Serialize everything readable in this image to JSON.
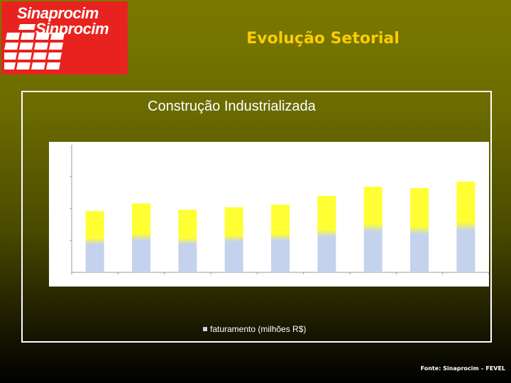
{
  "logo": {
    "line1": "Sinaprocim",
    "line2": "Sinprocim"
  },
  "slide": {
    "title": "Evolução Setorial",
    "source": "Fonte: Sinaprocim – FEVEL"
  },
  "colors": {
    "logo_background": "#e8231f",
    "title_text": "#ffcc00",
    "bar_bottom": "#c5d2ee",
    "bar_top": "#ffff33"
  },
  "chart_data": {
    "type": "bar",
    "title": "Construção Industrializada",
    "legend": [
      "faturamento (milhões R$)"
    ],
    "legend_position": "bottom",
    "grid": false,
    "ylim": [
      0,
      100
    ],
    "categories": [
      "",
      "",
      "",
      "",
      "",
      "",
      "",
      "",
      ""
    ],
    "series": [
      {
        "name": "faturamento (milhões R$)",
        "values": [
          48,
          54,
          49,
          51,
          53,
          60,
          67,
          66,
          71
        ],
        "base_values": [
          23,
          26,
          23,
          25,
          26,
          29,
          33,
          31,
          34
        ]
      }
    ]
  }
}
